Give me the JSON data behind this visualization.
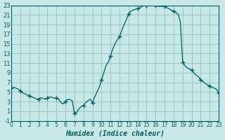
{
  "xlabel": "Humidex (Indice chaleur)",
  "ylabel": "",
  "background_color": "#c8e8e8",
  "grid_color": "#a0c8c8",
  "line_color": "#006060",
  "marker_color": "#006060",
  "xlim": [
    0,
    23
  ],
  "ylim": [
    -1,
    23
  ],
  "yticks": [
    -1,
    1,
    3,
    5,
    7,
    9,
    11,
    13,
    15,
    17,
    19,
    21,
    23
  ],
  "xticks": [
    0,
    1,
    2,
    3,
    4,
    5,
    6,
    7,
    8,
    9,
    10,
    11,
    12,
    13,
    14,
    15,
    16,
    17,
    18,
    19,
    20,
    21,
    22,
    23
  ],
  "x": [
    0,
    0.25,
    0.5,
    0.75,
    1.0,
    1.25,
    1.5,
    1.75,
    2.0,
    2.25,
    2.5,
    2.75,
    3.0,
    3.25,
    3.5,
    3.75,
    4.0,
    4.25,
    4.5,
    4.75,
    5.0,
    5.25,
    5.5,
    5.75,
    6.0,
    6.25,
    6.5,
    6.75,
    7.0,
    7.25,
    7.5,
    7.75,
    8.0,
    8.25,
    8.5,
    8.75,
    9.0,
    9.25,
    9.5,
    9.75,
    10.0,
    10.25,
    10.5,
    10.75,
    11.0,
    11.25,
    11.5,
    11.75,
    12.0,
    12.25,
    12.5,
    12.75,
    13.0,
    13.25,
    13.5,
    13.75,
    14.0,
    14.25,
    14.5,
    14.75,
    15.0,
    15.25,
    15.5,
    15.75,
    16.0,
    16.25,
    16.5,
    16.75,
    17.0,
    17.25,
    17.5,
    17.75,
    18.0,
    18.25,
    18.5,
    18.75,
    19.0,
    19.25,
    19.5,
    19.75,
    20.0,
    20.25,
    20.5,
    20.75,
    21.0,
    21.25,
    21.5,
    21.75,
    22.0,
    22.25,
    22.5,
    22.75,
    23.0
  ],
  "y": [
    5.8,
    6.0,
    5.8,
    5.6,
    5.2,
    4.8,
    4.6,
    4.4,
    4.2,
    4.0,
    3.8,
    3.6,
    3.5,
    3.8,
    3.7,
    3.5,
    3.7,
    4.0,
    3.9,
    3.7,
    3.8,
    3.5,
    2.8,
    2.5,
    3.0,
    3.5,
    3.4,
    3.2,
    0.5,
    0.8,
    1.5,
    2.0,
    2.2,
    2.8,
    3.2,
    3.5,
    2.8,
    4.0,
    5.0,
    6.0,
    7.5,
    9.0,
    10.5,
    11.2,
    12.5,
    14.0,
    15.0,
    15.8,
    16.5,
    17.8,
    19.0,
    20.0,
    21.2,
    21.8,
    22.0,
    22.2,
    22.3,
    22.5,
    22.8,
    23.0,
    23.0,
    23.0,
    23.0,
    23.0,
    23.0,
    22.8,
    22.8,
    22.8,
    22.8,
    22.5,
    22.3,
    22.0,
    21.8,
    21.5,
    21.2,
    19.5,
    11.2,
    10.5,
    10.0,
    9.8,
    9.5,
    9.0,
    8.5,
    8.2,
    7.5,
    7.2,
    6.8,
    6.5,
    6.2,
    6.0,
    5.8,
    5.6,
    4.8
  ],
  "marker_x": [
    0,
    1,
    2,
    3,
    4,
    5,
    6,
    7,
    8,
    9,
    10,
    11,
    12,
    13,
    14,
    15,
    16,
    17,
    18,
    19,
    20,
    21,
    22,
    23
  ],
  "marker_y": [
    5.8,
    5.2,
    4.2,
    3.5,
    3.7,
    3.8,
    3.0,
    0.5,
    2.2,
    2.8,
    7.5,
    12.5,
    16.5,
    21.2,
    22.3,
    23.0,
    23.0,
    22.8,
    21.8,
    11.2,
    9.5,
    7.5,
    6.2,
    4.8
  ]
}
